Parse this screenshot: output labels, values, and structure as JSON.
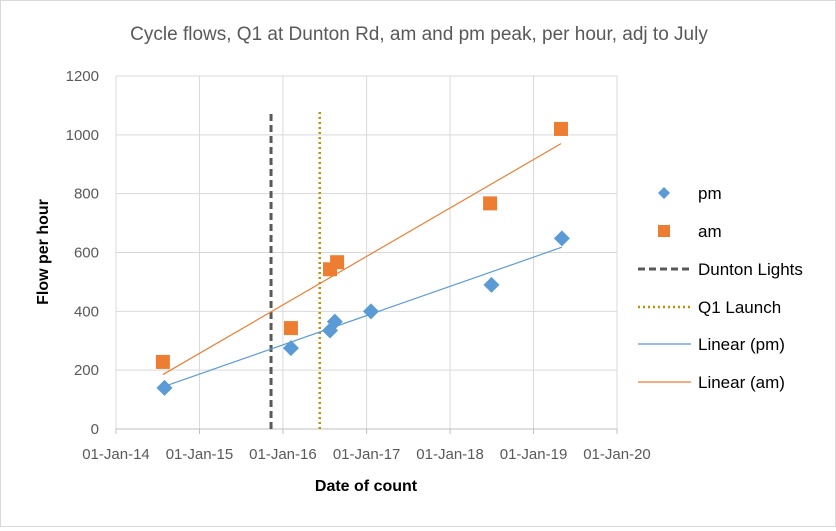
{
  "chart_data": {
    "type": "scatter",
    "title": "Cycle flows, Q1 at Dunton Rd, am and pm peak, per hour, adj to July",
    "xlabel": "Date of count",
    "ylabel": "Flow per hour",
    "xlim": [
      "2014-01-01",
      "2020-01-01"
    ],
    "ylim": [
      0,
      1200
    ],
    "x_ticks": [
      "01-Jan-14",
      "01-Jan-15",
      "01-Jan-16",
      "01-Jan-17",
      "01-Jan-18",
      "01-Jan-19",
      "01-Jan-20"
    ],
    "y_ticks": [
      0,
      200,
      400,
      600,
      800,
      1000,
      1200
    ],
    "grid": true,
    "legend_position": "right",
    "series": [
      {
        "name": "pm",
        "marker": "diamond",
        "color": "#5B9BD5",
        "points": [
          {
            "x": "2014-08-01",
            "y": 140
          },
          {
            "x": "2016-02-05",
            "y": 275
          },
          {
            "x": "2016-07-25",
            "y": 335
          },
          {
            "x": "2016-08-15",
            "y": 365
          },
          {
            "x": "2017-01-20",
            "y": 400
          },
          {
            "x": "2018-07-01",
            "y": 490
          },
          {
            "x": "2019-05-05",
            "y": 648
          }
        ]
      },
      {
        "name": "am",
        "marker": "square",
        "color": "#ED7D31",
        "points": [
          {
            "x": "2014-07-25",
            "y": 228
          },
          {
            "x": "2016-02-05",
            "y": 343
          },
          {
            "x": "2016-07-25",
            "y": 543
          },
          {
            "x": "2016-08-25",
            "y": 567
          },
          {
            "x": "2018-06-25",
            "y": 767
          },
          {
            "x": "2019-05-01",
            "y": 1020
          }
        ]
      }
    ],
    "vertical_lines": [
      {
        "name": "Dunton Lights",
        "x": "2015-11-10",
        "y_from": 0,
        "y_to": 1080,
        "color": "#595959",
        "style": "dashed"
      },
      {
        "name": "Q1 Launch",
        "x": "2016-06-10",
        "y_from": 0,
        "y_to": 1080,
        "color": "#BF9000",
        "style": "dotted"
      }
    ],
    "trendlines": [
      {
        "name": "Linear (pm)",
        "color": "#5B9BD5",
        "x_from": "2014-08-01",
        "x_to": "2019-05-05",
        "y_from": 145,
        "y_to": 618
      },
      {
        "name": "Linear (am)",
        "color": "#ED7D31",
        "x_from": "2014-07-25",
        "x_to": "2019-05-01",
        "y_from": 185,
        "y_to": 970
      }
    ]
  }
}
